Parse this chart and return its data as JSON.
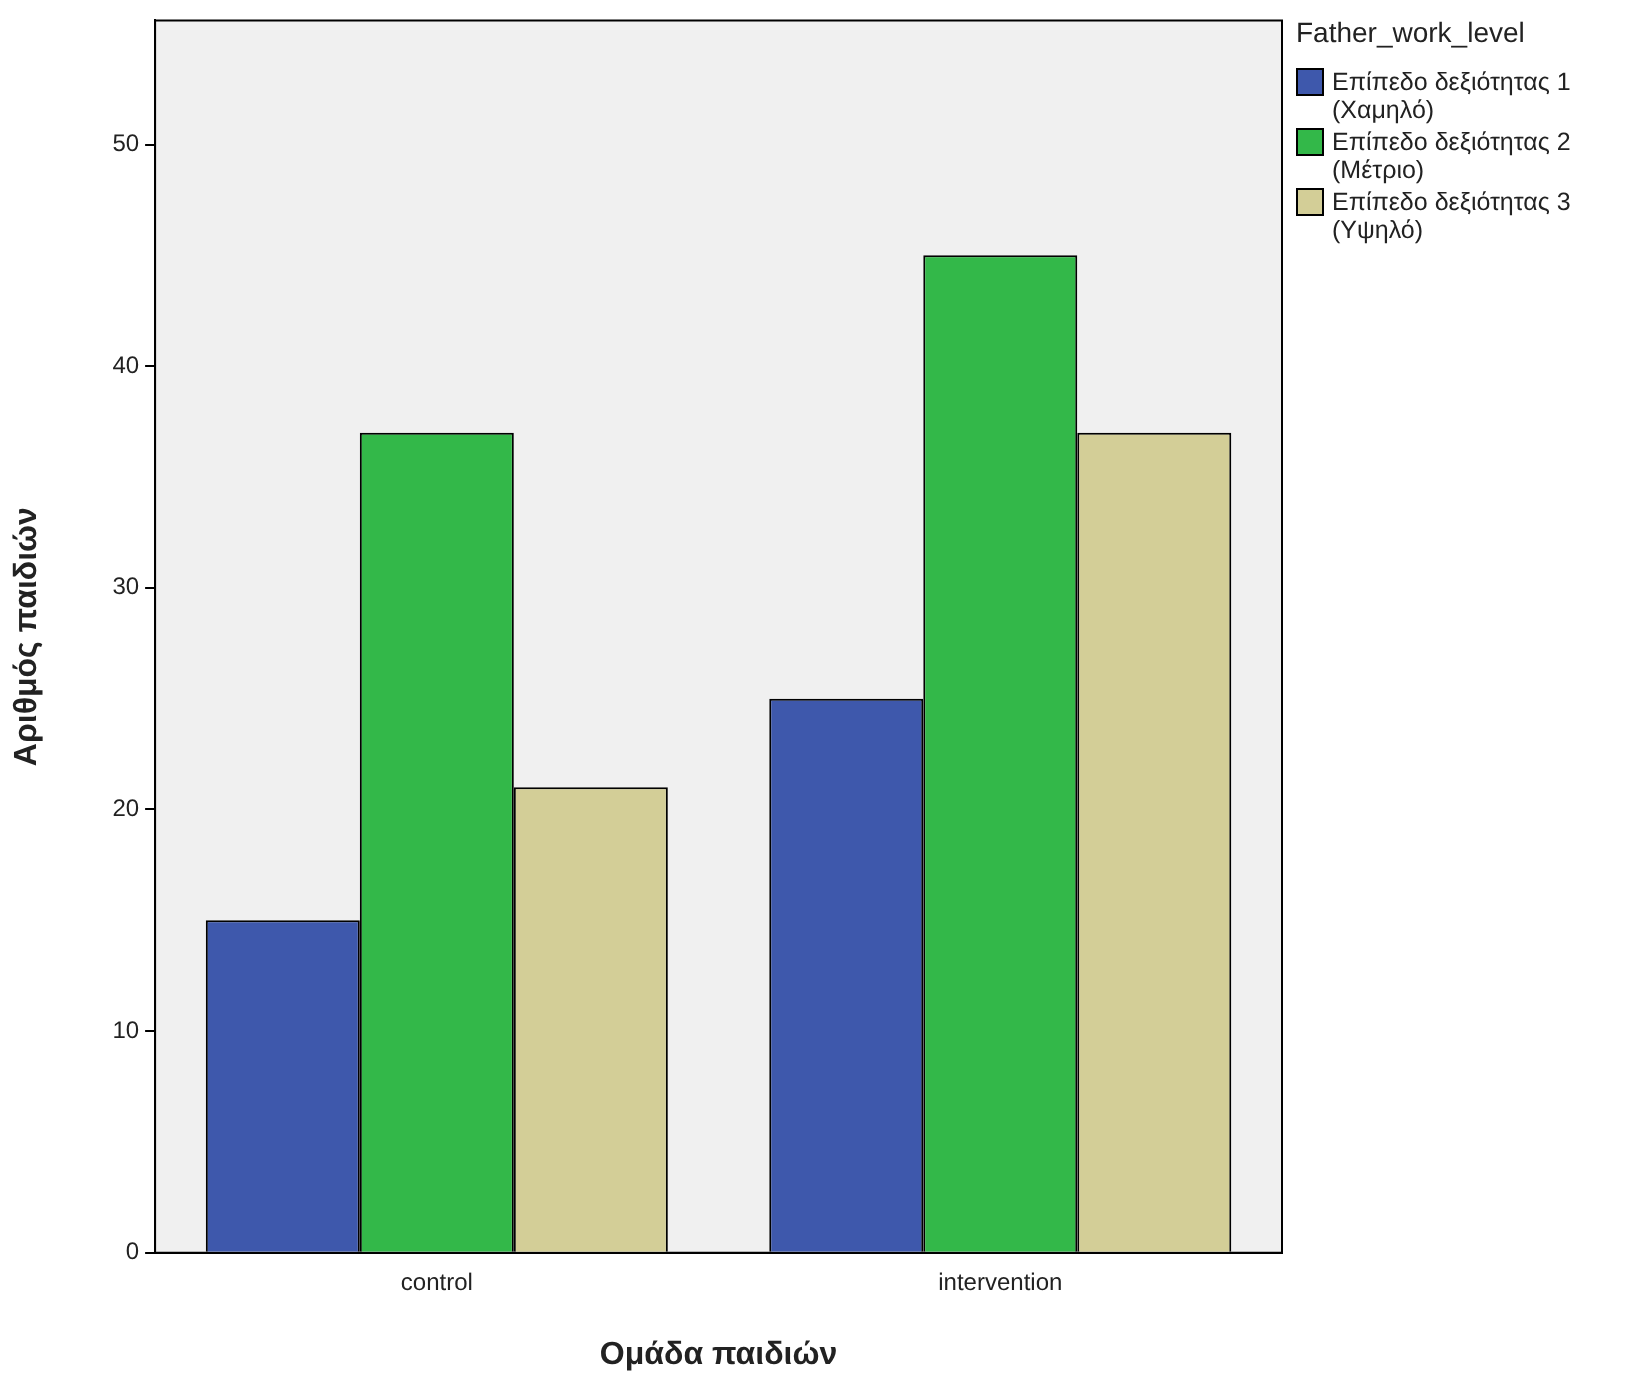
{
  "chart_data": {
    "type": "bar",
    "xlabel": "Ομάδα παιδιών",
    "ylabel": "Αριθμός παιδιών",
    "legend_title": "Father_work_level",
    "categories": [
      "control",
      "intervention"
    ],
    "series": [
      {
        "name": "Επίπεδο δεξιότητας 1 (Χαμηλό)",
        "color": "#3e58ac",
        "values": [
          15,
          25
        ]
      },
      {
        "name": "Επίπεδο δεξιότητας 2 (Μέτριο)",
        "color": "#33b849",
        "values": [
          37,
          45
        ]
      },
      {
        "name": "Επίπεδο δεξιότητας 3 (Υψηλό)",
        "color": "#d3ce97",
        "values": [
          21,
          37
        ]
      }
    ],
    "ylim": [
      0,
      55.6
    ],
    "yticks": [
      0,
      10,
      20,
      30,
      40,
      50
    ],
    "grid": false,
    "legend": "right"
  }
}
